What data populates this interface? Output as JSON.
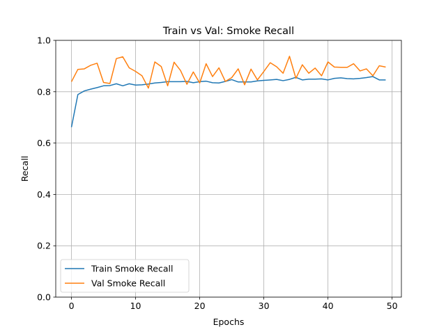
{
  "chart_data": {
    "type": "line",
    "title": "Train vs Val: Smoke Recall",
    "xlabel": "Epochs",
    "ylabel": "Recall",
    "xlim": [
      -2.45,
      51.45
    ],
    "ylim": [
      0.0,
      1.0
    ],
    "xticks": [
      0,
      10,
      20,
      30,
      40,
      50
    ],
    "yticks": [
      0.0,
      0.2,
      0.4,
      0.6,
      0.8,
      1.0
    ],
    "xtick_labels": [
      "0",
      "10",
      "20",
      "30",
      "40",
      "50"
    ],
    "ytick_labels": [
      "0.0",
      "0.2",
      "0.4",
      "0.6",
      "0.8",
      "1.0"
    ],
    "grid": true,
    "legend_position": "bottom-left",
    "x": [
      0,
      1,
      2,
      3,
      4,
      5,
      6,
      7,
      8,
      9,
      10,
      11,
      12,
      13,
      14,
      15,
      16,
      17,
      18,
      19,
      20,
      21,
      22,
      23,
      24,
      25,
      26,
      27,
      28,
      29,
      30,
      31,
      32,
      33,
      34,
      35,
      36,
      37,
      38,
      39,
      40,
      41,
      42,
      43,
      44,
      45,
      46,
      47,
      48,
      49
    ],
    "series": [
      {
        "name": "Train Smoke Recall",
        "color": "#1f77b4",
        "values": [
          0.662,
          0.789,
          0.803,
          0.81,
          0.816,
          0.823,
          0.824,
          0.831,
          0.823,
          0.831,
          0.826,
          0.827,
          0.83,
          0.834,
          0.836,
          0.839,
          0.839,
          0.839,
          0.84,
          0.835,
          0.839,
          0.841,
          0.835,
          0.834,
          0.84,
          0.847,
          0.838,
          0.838,
          0.838,
          0.842,
          0.844,
          0.846,
          0.848,
          0.843,
          0.848,
          0.856,
          0.846,
          0.849,
          0.849,
          0.85,
          0.846,
          0.852,
          0.854,
          0.851,
          0.85,
          0.852,
          0.855,
          0.859,
          0.846,
          0.846
        ]
      },
      {
        "name": "Val Smoke Recall",
        "color": "#ff7f0e",
        "values": [
          0.839,
          0.887,
          0.889,
          0.903,
          0.911,
          0.836,
          0.832,
          0.929,
          0.936,
          0.893,
          0.879,
          0.862,
          0.814,
          0.916,
          0.898,
          0.823,
          0.915,
          0.883,
          0.829,
          0.877,
          0.834,
          0.909,
          0.859,
          0.893,
          0.84,
          0.855,
          0.889,
          0.827,
          0.888,
          0.846,
          0.879,
          0.913,
          0.897,
          0.872,
          0.938,
          0.852,
          0.905,
          0.872,
          0.892,
          0.862,
          0.916,
          0.896,
          0.895,
          0.895,
          0.909,
          0.881,
          0.889,
          0.862,
          0.901,
          0.896
        ]
      }
    ]
  }
}
